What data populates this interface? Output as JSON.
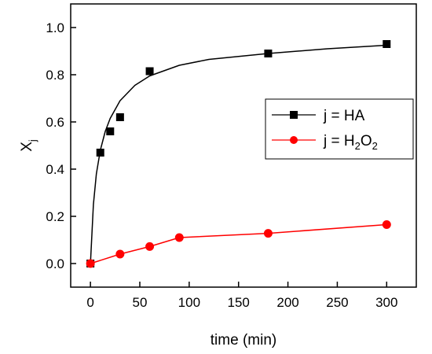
{
  "chart_data": {
    "type": "scatter",
    "xlabel": "time (min)",
    "ylabel": "X",
    "ylabel_subscript": "j",
    "xlim": [
      -20,
      330
    ],
    "ylim": [
      -0.1,
      1.1
    ],
    "x_ticks": [
      0,
      50,
      100,
      150,
      200,
      250,
      300
    ],
    "y_ticks": [
      0.0,
      0.2,
      0.4,
      0.6,
      0.8,
      1.0
    ],
    "y_tick_labels": [
      "0.0",
      "0.2",
      "0.4",
      "0.6",
      "0.8",
      "1.0"
    ],
    "grid": false,
    "legend_position": "right-middle",
    "series": [
      {
        "name": "j = HA",
        "legend_parts": [
          "j = HA"
        ],
        "marker": "square",
        "color": "#000000",
        "line": "fit-curve",
        "x": [
          0,
          10,
          20,
          30,
          60,
          180,
          300
        ],
        "y": [
          0.0,
          0.47,
          0.56,
          0.62,
          0.815,
          0.89,
          0.93
        ],
        "fit_curve": {
          "x": [
            0,
            3,
            6,
            10,
            15,
            20,
            30,
            45,
            60,
            90,
            120,
            180,
            240,
            300
          ],
          "y": [
            0.0,
            0.25,
            0.38,
            0.48,
            0.56,
            0.615,
            0.69,
            0.755,
            0.795,
            0.84,
            0.865,
            0.89,
            0.91,
            0.925
          ]
        }
      },
      {
        "name": "j = H2O2",
        "legend_parts": [
          "j = H",
          "2",
          "O",
          "2"
        ],
        "marker": "circle",
        "color": "#ff0000",
        "line": "segments",
        "x": [
          0,
          30,
          60,
          90,
          180,
          300
        ],
        "y": [
          0.0,
          0.04,
          0.072,
          0.11,
          0.128,
          0.165
        ]
      }
    ]
  }
}
